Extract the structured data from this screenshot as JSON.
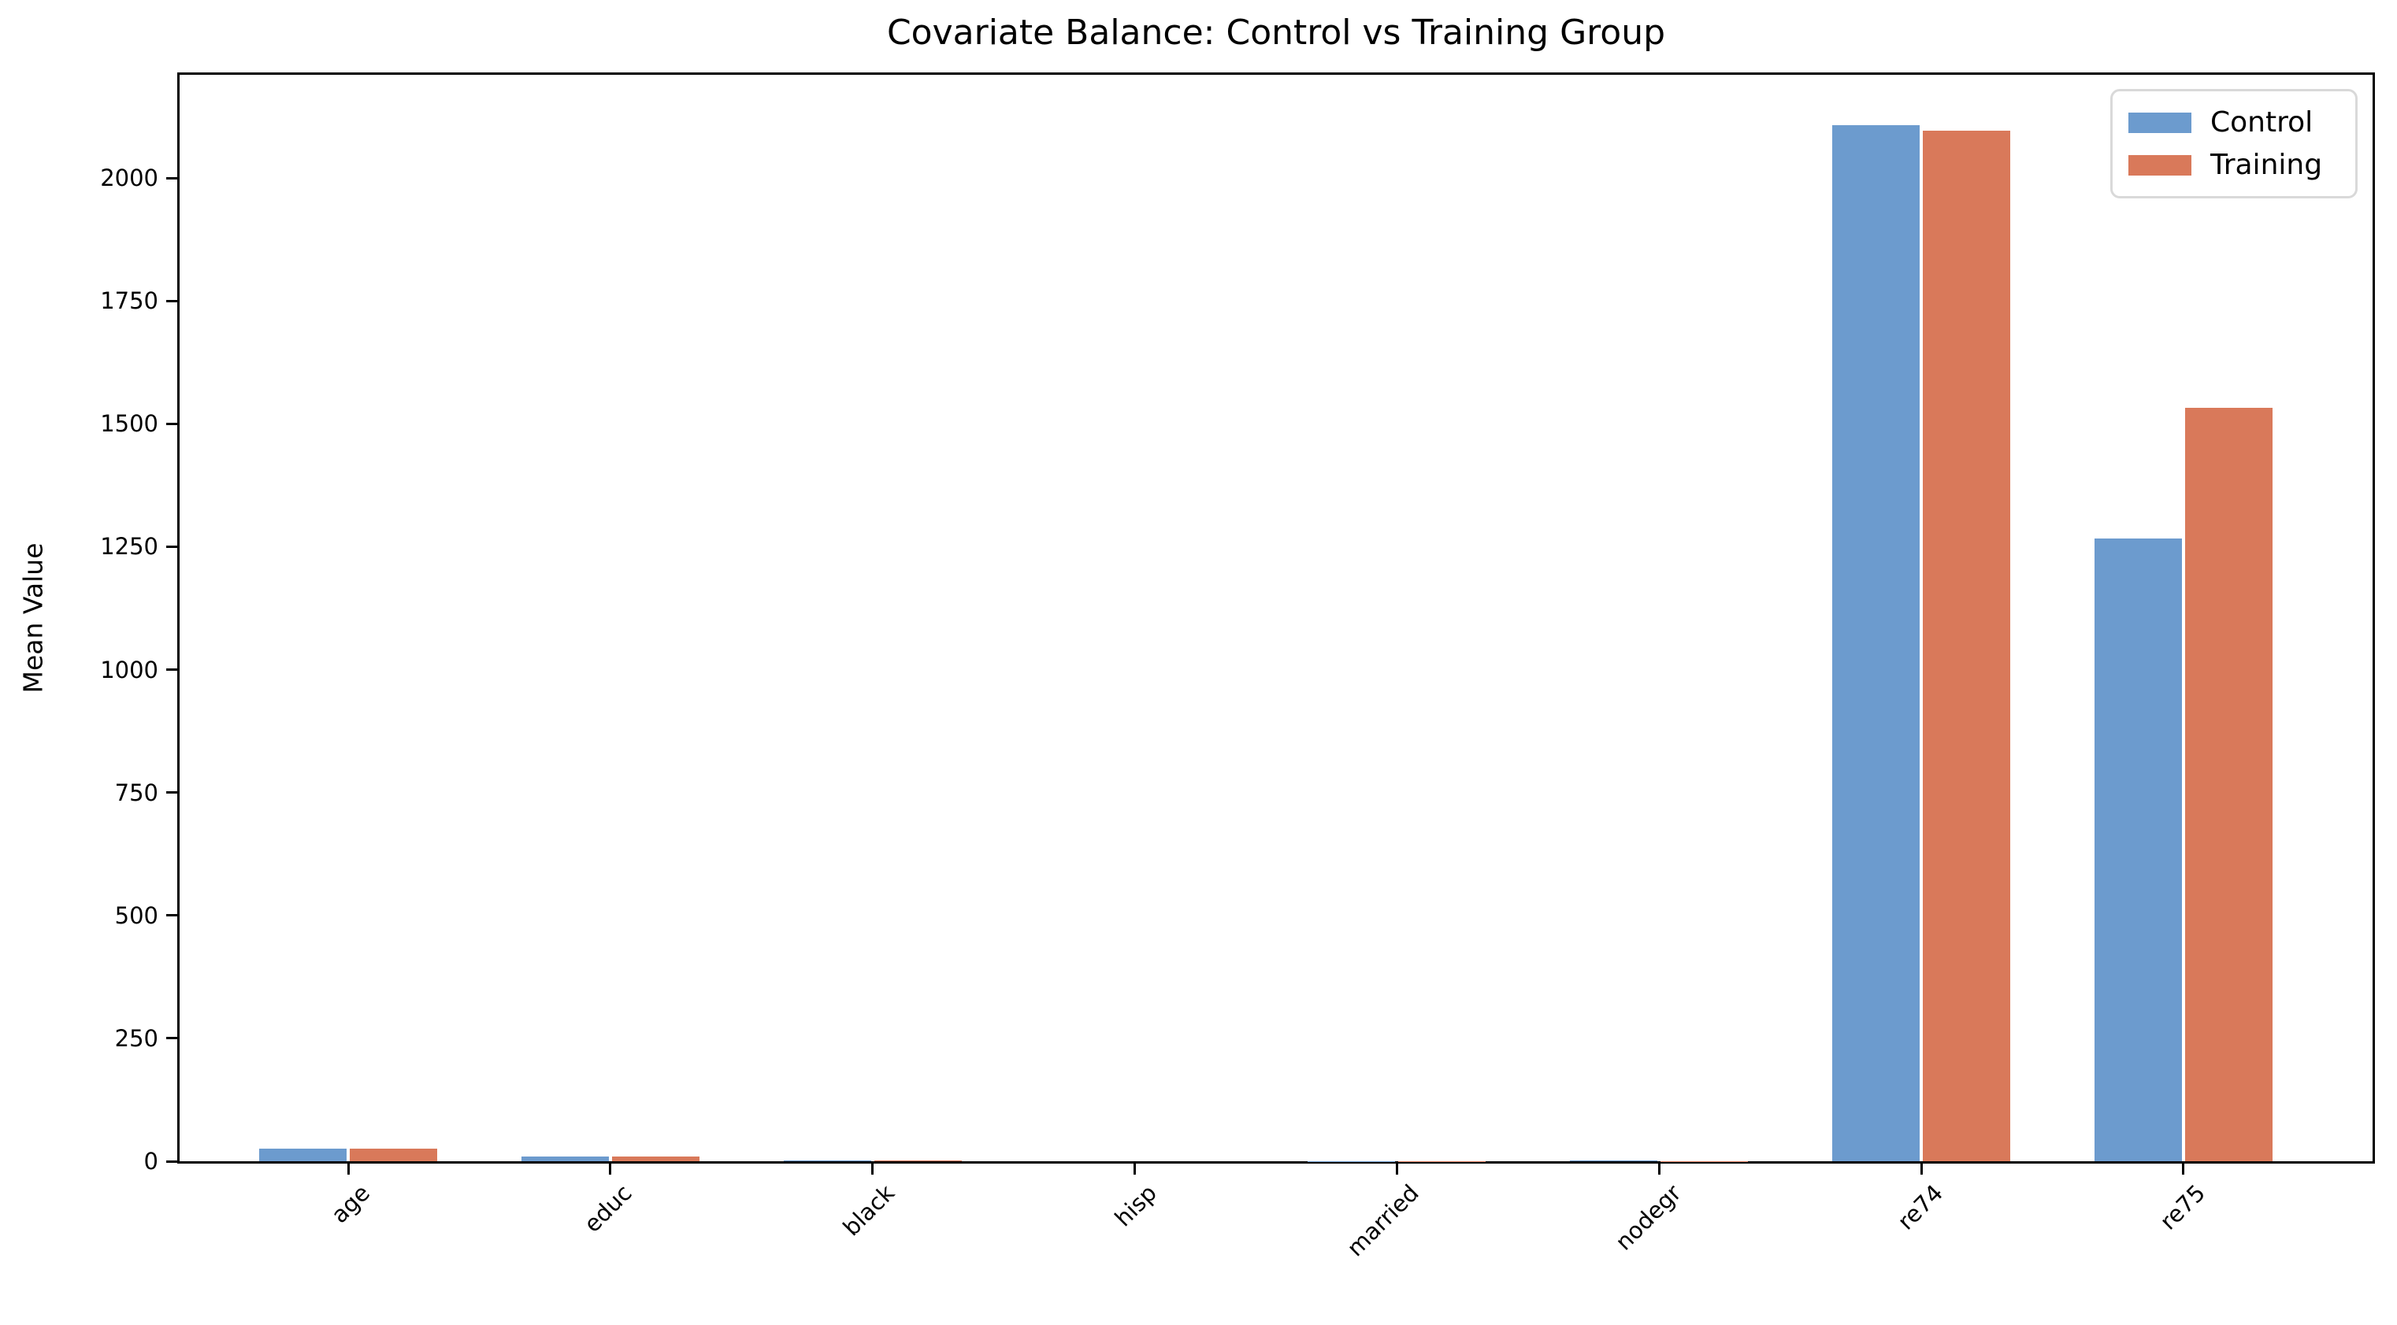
{
  "chart_data": {
    "type": "bar",
    "title": "Covariate Balance: Control vs Training Group",
    "xlabel": "",
    "ylabel": "Mean Value",
    "categories": [
      "age",
      "educ",
      "black",
      "hisp",
      "married",
      "nodegr",
      "re74",
      "re75"
    ],
    "series": [
      {
        "name": "Control",
        "color": "#6c9bce",
        "values": [
          25.05,
          10.09,
          0.83,
          0.11,
          0.15,
          0.83,
          2107.0,
          1266.9
        ]
      },
      {
        "name": "Training",
        "color": "#d9795a",
        "values": [
          25.82,
          10.35,
          0.84,
          0.06,
          0.19,
          0.71,
          2095.6,
          1532.1
        ]
      }
    ],
    "ylim": [
      0,
      2210
    ],
    "yticks": [
      0,
      250,
      500,
      750,
      1000,
      1250,
      1500,
      1750,
      2000
    ],
    "x_tick_rotation": 45,
    "grid": false,
    "legend": {
      "position": "upper right",
      "labels": [
        "Control",
        "Training"
      ]
    }
  }
}
